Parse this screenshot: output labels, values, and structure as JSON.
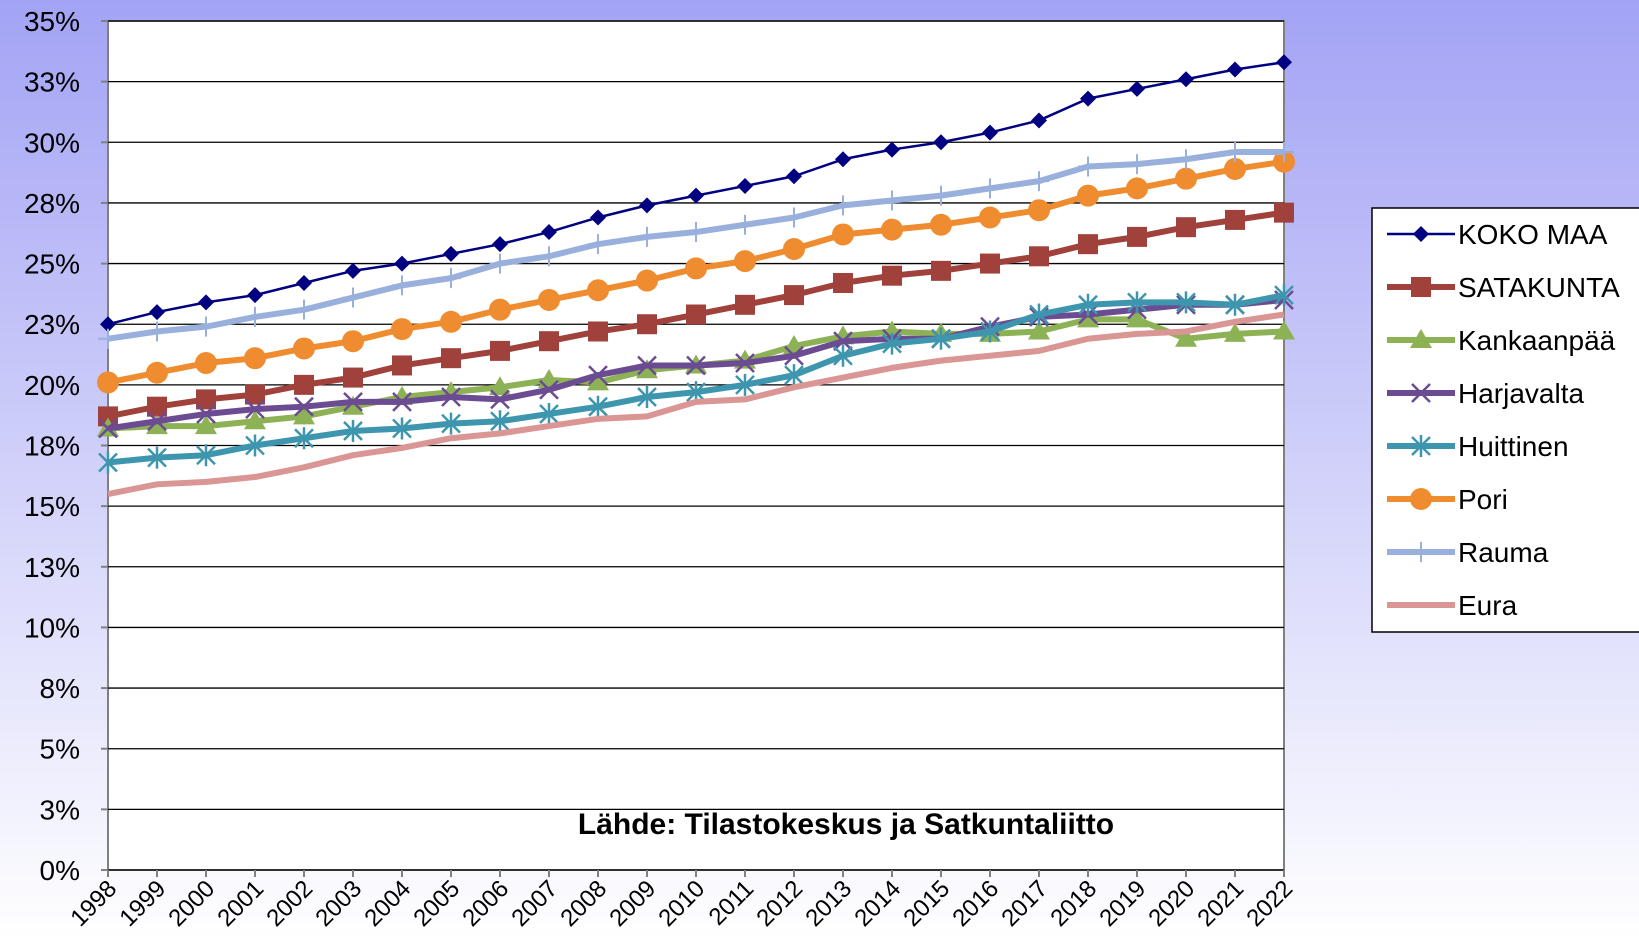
{
  "chart_data": {
    "type": "line",
    "annotation": "Lähde: Tilastokeskus ja Satkuntaliitto",
    "categories": [
      "1998",
      "1999",
      "2000",
      "2001",
      "2002",
      "2003",
      "2004",
      "2005",
      "2006",
      "2007",
      "2008",
      "2009",
      "2010",
      "2011",
      "2012",
      "2013",
      "2014",
      "2015",
      "2016",
      "2017",
      "2018",
      "2019",
      "2020",
      "2021",
      "2022"
    ],
    "ylim": [
      0,
      35
    ],
    "yticks": [
      {
        "value": 0,
        "label": "0%"
      },
      {
        "value": 2.5,
        "label": "3%"
      },
      {
        "value": 5,
        "label": "5%"
      },
      {
        "value": 7.5,
        "label": "8%"
      },
      {
        "value": 10,
        "label": "10%"
      },
      {
        "value": 12.5,
        "label": "13%"
      },
      {
        "value": 15,
        "label": "15%"
      },
      {
        "value": 17.5,
        "label": "18%"
      },
      {
        "value": 20,
        "label": "20%"
      },
      {
        "value": 22.5,
        "label": "23%"
      },
      {
        "value": 25,
        "label": "25%"
      },
      {
        "value": 27.5,
        "label": "28%"
      },
      {
        "value": 30,
        "label": "30%"
      },
      {
        "value": 32.5,
        "label": "33%"
      },
      {
        "value": 35,
        "label": "35%"
      }
    ],
    "grid": true,
    "legend": "right",
    "series": [
      {
        "name": "KOKO MAA",
        "color": "#000080",
        "marker": "diamond",
        "width": 2.5,
        "values": [
          22.5,
          23.0,
          23.4,
          23.7,
          24.2,
          24.7,
          25.0,
          25.4,
          25.8,
          26.3,
          26.9,
          27.4,
          27.8,
          28.2,
          28.6,
          29.3,
          29.7,
          30.0,
          30.4,
          30.9,
          31.8,
          32.2,
          32.6,
          33.0,
          33.3
        ]
      },
      {
        "name": "SATAKUNTA",
        "color": "#a0413c",
        "marker": "square",
        "width": 6,
        "values": [
          18.7,
          19.1,
          19.4,
          19.6,
          20.0,
          20.3,
          20.8,
          21.1,
          21.4,
          21.8,
          22.2,
          22.5,
          22.9,
          23.3,
          23.7,
          24.2,
          24.5,
          24.7,
          25.0,
          25.3,
          25.8,
          26.1,
          26.5,
          26.8,
          27.1
        ]
      },
      {
        "name": "Kankaanpää",
        "color": "#8db255",
        "marker": "triangle",
        "width": 6,
        "values": [
          18.2,
          18.3,
          18.3,
          18.5,
          18.7,
          19.1,
          19.5,
          19.7,
          19.9,
          20.2,
          20.1,
          20.6,
          20.8,
          21.0,
          21.6,
          22.0,
          22.2,
          22.1,
          22.1,
          22.2,
          22.7,
          22.7,
          21.9,
          22.1,
          22.2
        ]
      },
      {
        "name": "Harjavalta",
        "color": "#6b4b91",
        "marker": "x",
        "width": 6,
        "values": [
          18.2,
          18.5,
          18.8,
          19.0,
          19.1,
          19.3,
          19.3,
          19.5,
          19.4,
          19.8,
          20.4,
          20.8,
          20.8,
          20.9,
          21.2,
          21.8,
          21.9,
          21.9,
          22.4,
          22.8,
          22.9,
          23.1,
          23.3,
          23.3,
          23.5
        ]
      },
      {
        "name": "Huittinen",
        "color": "#3d96ae",
        "marker": "asterisk",
        "width": 6,
        "values": [
          16.8,
          17.0,
          17.1,
          17.5,
          17.8,
          18.1,
          18.2,
          18.4,
          18.5,
          18.8,
          19.1,
          19.5,
          19.7,
          20.0,
          20.4,
          21.2,
          21.7,
          21.9,
          22.2,
          22.9,
          23.3,
          23.4,
          23.4,
          23.3,
          23.7
        ]
      },
      {
        "name": "Pori",
        "color": "#f08c30",
        "marker": "circle",
        "width": 6,
        "values": [
          20.1,
          20.5,
          20.9,
          21.1,
          21.5,
          21.8,
          22.3,
          22.6,
          23.1,
          23.5,
          23.9,
          24.3,
          24.8,
          25.1,
          25.6,
          26.2,
          26.4,
          26.6,
          26.9,
          27.2,
          27.8,
          28.1,
          28.5,
          28.9,
          29.2
        ]
      },
      {
        "name": "Rauma",
        "color": "#9ab0dc",
        "marker": "plus",
        "width": 6,
        "values": [
          21.9,
          22.2,
          22.4,
          22.8,
          23.1,
          23.6,
          24.1,
          24.4,
          25.0,
          25.3,
          25.8,
          26.1,
          26.3,
          26.6,
          26.9,
          27.4,
          27.6,
          27.8,
          28.1,
          28.4,
          29.0,
          29.1,
          29.3,
          29.6,
          29.6
        ]
      },
      {
        "name": "Eura",
        "color": "#d99694",
        "marker": "none",
        "width": 6,
        "values": [
          15.5,
          15.9,
          16.0,
          16.2,
          16.6,
          17.1,
          17.4,
          17.8,
          18.0,
          18.3,
          18.6,
          18.7,
          19.3,
          19.4,
          19.9,
          20.3,
          20.7,
          21.0,
          21.2,
          21.4,
          21.9,
          22.1,
          22.2,
          22.6,
          22.9
        ]
      }
    ]
  }
}
